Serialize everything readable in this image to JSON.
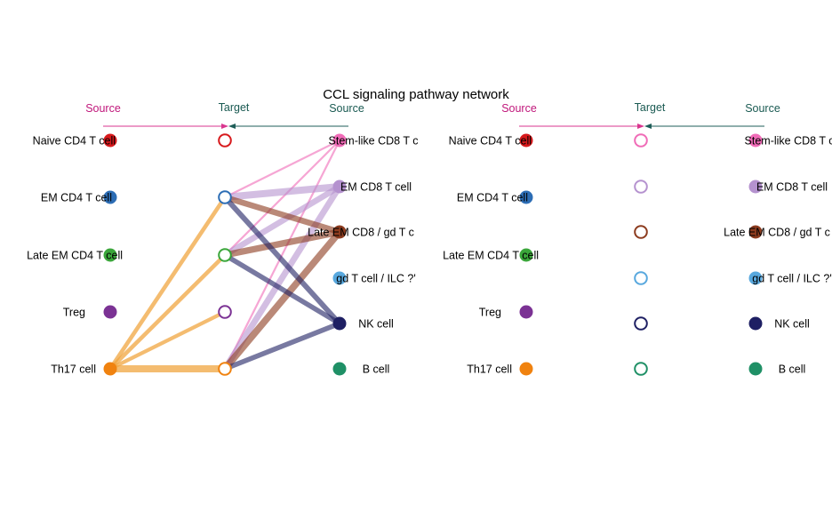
{
  "title": "CCL signaling pathway network",
  "colors": {
    "header_source_left": "#c0177b",
    "header_target": "#1a5a52",
    "arrow_left": "#d9368f",
    "arrow_right": "#1f5e59"
  },
  "panels": [
    {
      "headers": {
        "source_left": "Source",
        "target": "Target",
        "source_right": "Source"
      },
      "sources": [
        {
          "label": "Naive CD4 T cell",
          "color": "#d7191c"
        },
        {
          "label": "EM CD4 T cell",
          "color": "#2c6db5"
        },
        {
          "label": "Late EM CD4 T cell",
          "color": "#3aa63a"
        },
        {
          "label": "Treg",
          "color": "#7b3294"
        },
        {
          "label": "Th17 cell",
          "color": "#f0820f"
        }
      ],
      "targets_right": [
        {
          "label": "Stem-like CD8 T c",
          "color": "#f06bb7"
        },
        {
          "label": "EM CD8 T cell",
          "color": "#b592cf"
        },
        {
          "label": "Late EM CD8 / gd T c",
          "color": "#8c3b1e"
        },
        {
          "label": "gd T cell / ILC ?'",
          "color": "#58a8de"
        },
        {
          "label": "NK cell",
          "color": "#1e1f63"
        },
        {
          "label": "B cell",
          "color": "#1f9066"
        }
      ],
      "mid_targets": [
        {
          "color": "#d7191c"
        },
        {
          "color": "#2c6db5"
        },
        {
          "color": "#3aa63a"
        },
        {
          "color": "#7b3294"
        },
        {
          "color": "#f0820f"
        }
      ],
      "edges_left": [
        {
          "from": 4,
          "to": 1,
          "color": "#f0a640",
          "weight": 0.5
        },
        {
          "from": 4,
          "to": 2,
          "color": "#f0a640",
          "weight": 0.5
        },
        {
          "from": 4,
          "to": 3,
          "color": "#f0a640",
          "weight": 0.45
        },
        {
          "from": 4,
          "to": 4,
          "color": "#f0a640",
          "weight": 1.0
        }
      ],
      "edges_right": [
        {
          "from": 1,
          "to": 0,
          "color": "#f06bb7",
          "weight": 0.15
        },
        {
          "from": 2,
          "to": 0,
          "color": "#f06bb7",
          "weight": 0.15
        },
        {
          "from": 4,
          "to": 0,
          "color": "#f06bb7",
          "weight": 0.15
        },
        {
          "from": 1,
          "to": 1,
          "color": "#b592cf",
          "weight": 1.0
        },
        {
          "from": 2,
          "to": 1,
          "color": "#b592cf",
          "weight": 0.8
        },
        {
          "from": 4,
          "to": 1,
          "color": "#b592cf",
          "weight": 0.85
        },
        {
          "from": 1,
          "to": 2,
          "color": "#8c3b1e",
          "weight": 0.8
        },
        {
          "from": 2,
          "to": 2,
          "color": "#8c3b1e",
          "weight": 0.9
        },
        {
          "from": 4,
          "to": 2,
          "color": "#8c3b1e",
          "weight": 0.95
        },
        {
          "from": 1,
          "to": 4,
          "color": "#1e1f63",
          "weight": 0.7
        },
        {
          "from": 2,
          "to": 4,
          "color": "#1e1f63",
          "weight": 0.65
        },
        {
          "from": 4,
          "to": 4,
          "color": "#1e1f63",
          "weight": 0.65
        }
      ]
    },
    {
      "headers": {
        "source_left": "Source",
        "target": "Target",
        "source_right": "Source"
      },
      "sources": [
        {
          "label": "Naive CD4 T cell",
          "color": "#d7191c"
        },
        {
          "label": "EM CD4 T cell",
          "color": "#2c6db5"
        },
        {
          "label": "Late EM CD4 T cell",
          "color": "#3aa63a"
        },
        {
          "label": "Treg",
          "color": "#7b3294"
        },
        {
          "label": "Th17 cell",
          "color": "#f0820f"
        }
      ],
      "targets_right": [
        {
          "label": "Stem-like CD8 T c",
          "color": "#f06bb7"
        },
        {
          "label": "EM CD8 T cell",
          "color": "#b592cf"
        },
        {
          "label": "Late EM CD8 / gd T c",
          "color": "#8c3b1e"
        },
        {
          "label": "gd T cell / ILC ?'",
          "color": "#58a8de"
        },
        {
          "label": "NK cell",
          "color": "#1e1f63"
        },
        {
          "label": "B cell",
          "color": "#1f9066"
        }
      ],
      "mid_targets": [
        {
          "color": "#f06bb7"
        },
        {
          "color": "#b592cf"
        },
        {
          "color": "#8c3b1e"
        },
        {
          "color": "#58a8de"
        },
        {
          "color": "#1e1f63"
        },
        {
          "color": "#1f9066"
        }
      ],
      "edges_left": [],
      "edges_right": []
    }
  ]
}
